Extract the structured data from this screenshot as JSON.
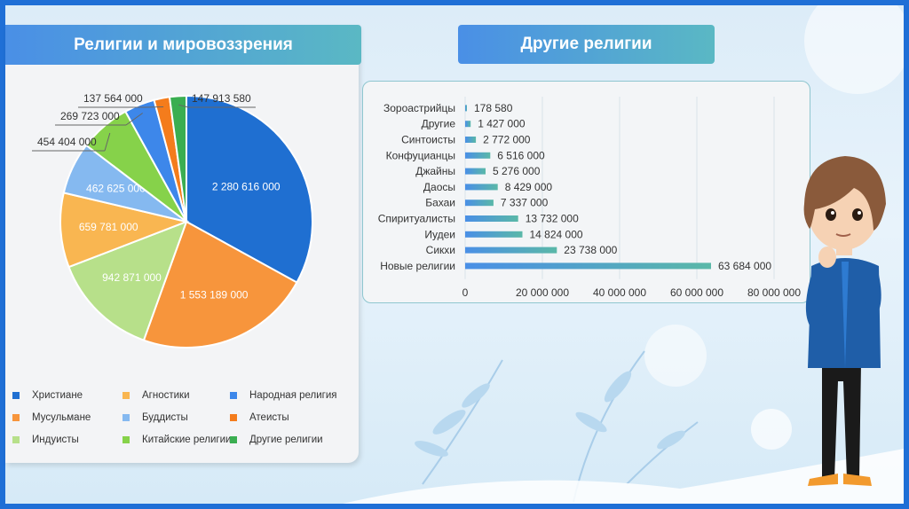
{
  "left_panel": {
    "title": "Религии и мировоззрения"
  },
  "right_panel": {
    "title": "Другие религии"
  },
  "chart_data": [
    {
      "type": "pie",
      "title": "Религии и мировоззрения",
      "slices": [
        {
          "label": "Христиане",
          "value": 2280616000,
          "value_label": "2 280 616 000",
          "color": "#1f6fd1"
        },
        {
          "label": "Мусульмане",
          "value": 1553189000,
          "value_label": "1 553 189 000",
          "color": "#f7953c"
        },
        {
          "label": "Индуисты",
          "value": 942871000,
          "value_label": "942 871 000",
          "color": "#b7e08a"
        },
        {
          "label": "Агностики",
          "value": 659781000,
          "value_label": "659 781 000",
          "color": "#f9b651"
        },
        {
          "label": "Буддисты",
          "value": 462625000,
          "value_label": "462 625 000",
          "color": "#85b9f0"
        },
        {
          "label": "Китайские религии",
          "value": 454404000,
          "value_label": "454 404 000",
          "color": "#86d24a"
        },
        {
          "label": "Народная религия",
          "value": 269723000,
          "value_label": "269 723 000",
          "color": "#3d87ea"
        },
        {
          "label": "Атеисты",
          "value": 137564000,
          "value_label": "137 564 000",
          "color": "#f47c1c"
        },
        {
          "label": "Другие религии",
          "value": 147913580,
          "value_label": "147 913 580",
          "color": "#3aae51"
        }
      ],
      "legend_order": [
        "Христиане",
        "Агностики",
        "Народная религия",
        "Мусульмане",
        "Буддисты",
        "Атеисты",
        "Индуисты",
        "Китайские религии",
        "Другие религии"
      ],
      "legend_placement": "bottom"
    },
    {
      "type": "bar",
      "orientation": "horizontal",
      "title": "Другие религии",
      "categories": [
        "Зороастрийцы",
        "Другие",
        "Синтоисты",
        "Конфуцианцы",
        "Джайны",
        "Даосы",
        "Бахаи",
        "Спиритуалисты",
        "Иудеи",
        "Сикхи",
        "Новые религии"
      ],
      "values": [
        178580,
        1427000,
        2772000,
        6516000,
        5276000,
        8429000,
        7337000,
        13732000,
        14824000,
        23738000,
        63684000
      ],
      "value_labels": [
        "178 580",
        "1 427 000",
        "2 772 000",
        "6 516 000",
        "5 276 000",
        "8 429 000",
        "7 337 000",
        "13 732 000",
        "14 824 000",
        "23 738 000",
        "63 684 000"
      ],
      "xlim": [
        0,
        80000000
      ],
      "xticks": [
        0,
        20000000,
        40000000,
        60000000,
        80000000
      ],
      "xtick_labels": [
        "0",
        "20 000 000",
        "40 000 000",
        "60 000 000",
        "80 000 000"
      ],
      "grid": true,
      "bar_color_start": "#4a8fe6",
      "bar_color_end": "#5ab8a8"
    }
  ]
}
